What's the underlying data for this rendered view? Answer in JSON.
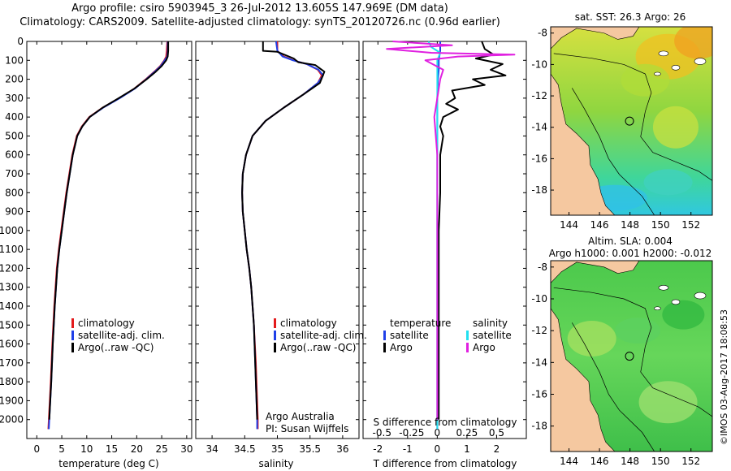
{
  "header": {
    "line1": "Argo profile: csiro 5903945_3 26-Jul-2012 13.605S 147.969E (DM data)",
    "line2": "Climatology: CARS2009. Satellite-adjusted climatology: synTS_20120726.nc (0.96d earlier)"
  },
  "colors": {
    "clim": "#e31a1c",
    "sat": "#1f3fe8",
    "argo": "#000000",
    "sat_s": "#22e0f0",
    "argo_s": "#e020e0"
  },
  "chart_data": [
    {
      "id": "temperature",
      "type": "line",
      "xlabel": "temperature (deg C)",
      "ylabel": "",
      "xlim": [
        -2,
        31
      ],
      "ylim": [
        0,
        2100
      ],
      "xticks": [
        0,
        5,
        10,
        15,
        20,
        25,
        30
      ],
      "yticks": [
        0,
        100,
        200,
        300,
        400,
        500,
        600,
        700,
        800,
        900,
        1000,
        1100,
        1200,
        1300,
        1400,
        1500,
        1600,
        1700,
        1800,
        1900,
        2000
      ],
      "legend": [
        "climatology",
        "satellite-adj. clim.",
        "Argo(..raw -QC)"
      ],
      "series": [
        {
          "name": "climatology",
          "color_key": "clim",
          "x": [
            26.1,
            26.0,
            25.9,
            25.5,
            24.7,
            23.5,
            21.8,
            19.5,
            16.5,
            13.2,
            10.5,
            9.0,
            8.0,
            7.1,
            6.5,
            5.9,
            5.4,
            4.9,
            4.4,
            4.0,
            3.5,
            3.1,
            2.8,
            2.6,
            2.4,
            2.3
          ],
          "y": [
            0,
            50,
            80,
            100,
            130,
            160,
            200,
            250,
            300,
            350,
            400,
            450,
            500,
            600,
            700,
            800,
            900,
            1000,
            1100,
            1200,
            1400,
            1600,
            1800,
            1900,
            2000,
            2050
          ]
        },
        {
          "name": "satellite-adj. clim.",
          "color_key": "sat",
          "x": [
            26.2,
            26.2,
            26.1,
            25.6,
            24.8,
            23.6,
            21.9,
            19.6,
            16.6,
            13.3,
            10.6,
            9.1,
            8.1,
            7.2,
            6.6,
            6.0,
            5.5,
            5.0,
            4.5,
            4.1,
            3.6,
            3.2,
            2.9,
            2.7,
            2.5,
            2.4
          ],
          "y": [
            0,
            50,
            80,
            100,
            130,
            160,
            200,
            250,
            300,
            350,
            400,
            450,
            500,
            600,
            700,
            800,
            900,
            1000,
            1100,
            1200,
            1400,
            1600,
            1800,
            1900,
            2000,
            2050
          ]
        },
        {
          "name": "Argo(..raw -QC)",
          "color_key": "argo",
          "x": [
            26.3,
            26.3,
            26.2,
            25.9,
            25.0,
            23.8,
            22.0,
            19.5,
            16.4,
            13.2,
            10.6,
            9.1,
            8.1,
            7.2,
            6.6,
            6.0,
            5.5,
            5.0,
            4.5,
            4.1,
            3.6,
            3.2,
            2.9,
            2.7,
            2.5
          ],
          "y": [
            0,
            50,
            80,
            100,
            130,
            160,
            200,
            250,
            300,
            350,
            400,
            450,
            500,
            600,
            700,
            800,
            900,
            1000,
            1100,
            1200,
            1400,
            1600,
            1800,
            1900,
            2000
          ]
        }
      ]
    },
    {
      "id": "salinity",
      "type": "line",
      "xlabel": "salinity",
      "xlim": [
        33.75,
        36.25
      ],
      "ylim": [
        0,
        2100
      ],
      "xticks": [
        34,
        34.5,
        35,
        35.5,
        36
      ],
      "legend": [
        "climatology",
        "satellite-adj. clim.",
        "Argo(..raw -QC)"
      ],
      "series": [
        {
          "name": "climatology",
          "color_key": "clim",
          "x": [
            35.0,
            35.0,
            35.1,
            35.25,
            35.45,
            35.62,
            35.68,
            35.62,
            35.4,
            35.1,
            34.82,
            34.62,
            34.52,
            34.47,
            34.46,
            34.47,
            34.5,
            34.53,
            34.57,
            34.6,
            34.64,
            34.67,
            34.69,
            34.7,
            34.7
          ],
          "y": [
            0,
            50,
            80,
            100,
            120,
            150,
            180,
            220,
            280,
            350,
            420,
            500,
            600,
            700,
            800,
            900,
            1000,
            1100,
            1200,
            1300,
            1500,
            1700,
            1900,
            2000,
            2050
          ]
        },
        {
          "name": "satellite-adj. clim.",
          "color_key": "sat",
          "x": [
            34.98,
            35.0,
            35.08,
            35.24,
            35.45,
            35.63,
            35.7,
            35.62,
            35.4,
            35.1,
            34.82,
            34.62,
            34.52,
            34.47,
            34.46,
            34.47,
            34.5,
            34.53,
            34.57,
            34.6,
            34.64,
            34.66,
            34.68,
            34.69,
            34.69
          ],
          "y": [
            0,
            50,
            80,
            100,
            120,
            150,
            180,
            220,
            280,
            350,
            420,
            500,
            600,
            700,
            800,
            900,
            1000,
            1100,
            1200,
            1300,
            1500,
            1700,
            1900,
            2000,
            2050
          ]
        },
        {
          "name": "Argo(..raw -QC)",
          "color_key": "argo",
          "x": [
            34.78,
            34.78,
            35.0,
            35.25,
            35.32,
            35.58,
            35.72,
            35.65,
            35.4,
            35.1,
            34.82,
            34.62,
            34.52,
            34.47,
            34.46,
            34.47,
            34.5,
            34.53,
            34.57,
            34.6,
            34.64,
            34.66,
            34.68,
            34.69
          ],
          "y": [
            0,
            50,
            55,
            90,
            110,
            125,
            160,
            220,
            280,
            350,
            420,
            500,
            600,
            700,
            800,
            900,
            1000,
            1100,
            1200,
            1300,
            1500,
            1700,
            1900,
            2000
          ]
        }
      ],
      "credit": [
        "Argo Australia",
        "PI: Susan Wijffels"
      ]
    },
    {
      "id": "differences",
      "type": "line",
      "xlabel": "T difference from climatology",
      "xlabel_top": "S difference from climatology",
      "xlim": [
        -2.5,
        3
      ],
      "ylim": [
        0,
        2100
      ],
      "xticks": [
        -2,
        -1,
        0,
        1,
        2
      ],
      "xticks_top_labels": [
        "-0.5",
        "-0.25",
        "0",
        "0.25",
        "0.5"
      ],
      "xticks_top_values": [
        -2,
        -1,
        0,
        1,
        2
      ],
      "legend_left_title": "temperature",
      "legend_right_title": "salinity",
      "legend_left": [
        "satellite",
        "Argo"
      ],
      "legend_right": [
        "satellite",
        "Argo"
      ],
      "series": [
        {
          "name": "T satellite",
          "color_key": "sat",
          "x": [
            0.1,
            0.1,
            0.05,
            0.05,
            0.02,
            0,
            0,
            0,
            0,
            0,
            0,
            0,
            0
          ],
          "y": [
            0,
            50,
            100,
            150,
            200,
            300,
            400,
            600,
            800,
            1000,
            1400,
            1800,
            2050
          ]
        },
        {
          "name": "T Argo",
          "color_key": "argo",
          "x": [
            1.5,
            1.6,
            1.9,
            1.3,
            2.2,
            1.8,
            2.3,
            1.2,
            1.6,
            0.5,
            0.6,
            0.3,
            0.7,
            0.2,
            0.1,
            0.2,
            0.1,
            0.1,
            0.05,
            0.05,
            0.05,
            0.05
          ],
          "y": [
            0,
            40,
            70,
            90,
            120,
            150,
            180,
            200,
            230,
            260,
            300,
            330,
            360,
            400,
            450,
            500,
            600,
            800,
            1000,
            1400,
            1800,
            2000
          ]
        },
        {
          "name": "S satellite",
          "color_key": "sat_s",
          "x": [
            -0.3,
            -0.2,
            0.1,
            0,
            0,
            0,
            0,
            0,
            0,
            0,
            0
          ],
          "y": [
            0,
            30,
            60,
            100,
            200,
            400,
            600,
            800,
            1200,
            1600,
            2050
          ]
        },
        {
          "name": "S Argo",
          "color_key": "argo_s",
          "x": [
            -1.5,
            0.5,
            -1.7,
            -0.2,
            2.6,
            0.7,
            -0.4,
            0.2,
            0.1,
            0,
            -0.1,
            0,
            0,
            0,
            0,
            0
          ],
          "y": [
            0,
            20,
            40,
            60,
            70,
            80,
            100,
            150,
            200,
            300,
            400,
            600,
            800,
            1200,
            1600,
            2000
          ]
        }
      ]
    }
  ],
  "maps": {
    "top_title": "sat. SST: 26.3  Argo: 26",
    "bottom_title_1": "Altim. SLA: 0.004",
    "bottom_title_2": "Argo h1000: 0.001  h2000: -0.012",
    "xticks": [
      "144",
      "146",
      "148",
      "150",
      "152"
    ],
    "yticks": [
      "-8",
      "-10",
      "-12",
      "-14",
      "-16",
      "-18"
    ],
    "xticks_values": [
      144,
      146,
      148,
      150,
      152
    ],
    "yticks_values": [
      -8,
      -10,
      -12,
      -14,
      -16,
      -18
    ],
    "lon_range": [
      142.8,
      153.4
    ],
    "lat_range": [
      -19.6,
      -7.6
    ],
    "argo_lon": 147.969,
    "argo_lat": -13.605,
    "timestamp": "©IMOS 03-Aug-2017 18:08:53"
  }
}
